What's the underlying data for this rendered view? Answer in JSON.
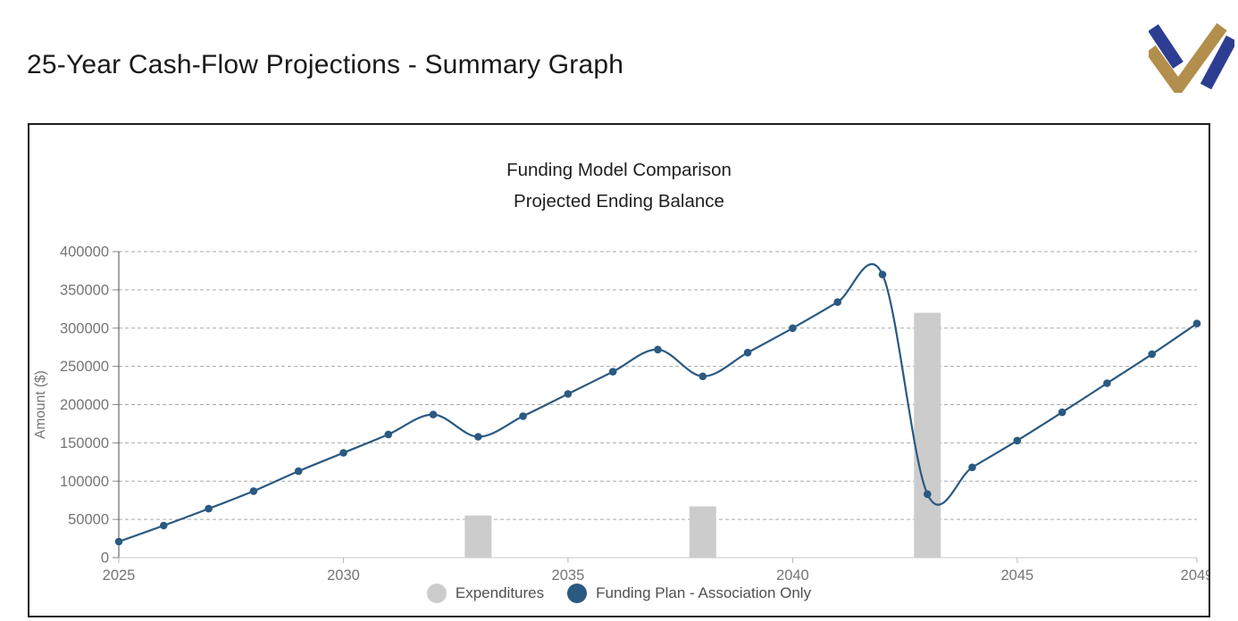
{
  "page": {
    "title": "25-Year Cash-Flow Projections - Summary Graph"
  },
  "logo": {
    "name": "double-checkmark-monogram",
    "blue": "#2d3e92",
    "gold": "#b28f4c"
  },
  "chart_data": {
    "type": "line",
    "title": "Funding Model Comparison",
    "subtitle": "Projected Ending Balance",
    "xlabel": "",
    "ylabel": "Amount ($)",
    "ylim": [
      0,
      400000
    ],
    "ytick_step": 50000,
    "x_range": [
      2025,
      2049
    ],
    "xticks": [
      2025,
      2030,
      2035,
      2040,
      2045,
      2049
    ],
    "grid": "horizontal-dashed",
    "legend_position": "bottom",
    "categories": [
      2025,
      2026,
      2027,
      2028,
      2029,
      2030,
      2031,
      2032,
      2033,
      2034,
      2035,
      2036,
      2037,
      2038,
      2039,
      2040,
      2041,
      2042,
      2043,
      2044,
      2045,
      2046,
      2047,
      2048,
      2049
    ],
    "series": [
      {
        "name": "Expenditures",
        "type": "bar",
        "color": "#cccccc",
        "points": [
          {
            "x": 2033,
            "y": 55000
          },
          {
            "x": 2038,
            "y": 67000
          },
          {
            "x": 2043,
            "y": 320000
          }
        ]
      },
      {
        "name": "Funding Plan - Association Only",
        "type": "line",
        "color": "#2a5982",
        "values": [
          21000,
          42000,
          64000,
          87000,
          113000,
          137000,
          161000,
          187000,
          158000,
          185000,
          214000,
          243000,
          272000,
          237000,
          268000,
          300000,
          334000,
          370000,
          83000,
          118000,
          153000,
          190000,
          228000,
          266000,
          306000
        ]
      }
    ]
  }
}
